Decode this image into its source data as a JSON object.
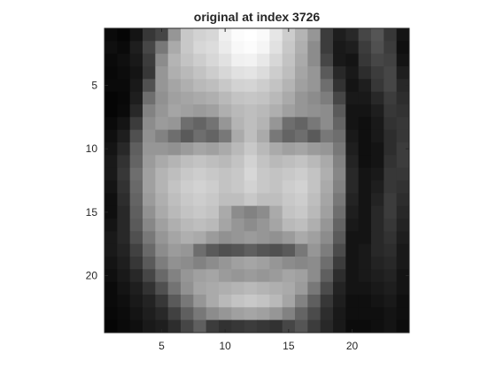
{
  "figure": {
    "title": "original at index 3726"
  },
  "chart_data": {
    "type": "heatmap",
    "title": "original at index 3726",
    "colormap": "gray",
    "xlim": [
      0.5,
      24.5
    ],
    "ylim": [
      0.5,
      24.5
    ],
    "y_reversed": true,
    "xticks": [
      5,
      10,
      15,
      20
    ],
    "yticks": [
      5,
      10,
      15,
      20
    ],
    "grid": false,
    "rows": 24,
    "cols": 24,
    "values": [
      [
        10,
        5,
        20,
        55,
        70,
        150,
        200,
        210,
        215,
        240,
        252,
        255,
        250,
        230,
        205,
        180,
        150,
        60,
        30,
        40,
        70,
        85,
        55,
        20
      ],
      [
        15,
        10,
        30,
        70,
        120,
        170,
        200,
        215,
        220,
        235,
        248,
        252,
        245,
        225,
        200,
        175,
        140,
        60,
        25,
        30,
        60,
        80,
        60,
        15
      ],
      [
        10,
        15,
        25,
        60,
        140,
        180,
        195,
        205,
        215,
        225,
        240,
        242,
        232,
        215,
        195,
        170,
        140,
        70,
        25,
        20,
        55,
        70,
        65,
        20
      ],
      [
        8,
        12,
        20,
        55,
        150,
        175,
        185,
        195,
        205,
        215,
        225,
        228,
        220,
        205,
        190,
        165,
        150,
        90,
        40,
        25,
        45,
        60,
        70,
        30
      ],
      [
        10,
        10,
        25,
        80,
        150,
        165,
        175,
        185,
        190,
        200,
        210,
        212,
        205,
        195,
        180,
        160,
        150,
        110,
        50,
        20,
        30,
        55,
        70,
        40
      ],
      [
        5,
        8,
        30,
        110,
        145,
        160,
        165,
        170,
        175,
        185,
        195,
        198,
        195,
        185,
        170,
        150,
        140,
        125,
        70,
        25,
        25,
        40,
        60,
        45
      ],
      [
        5,
        10,
        40,
        130,
        150,
        165,
        160,
        155,
        160,
        175,
        185,
        190,
        185,
        175,
        160,
        150,
        145,
        140,
        90,
        20,
        20,
        30,
        55,
        50
      ],
      [
        10,
        20,
        60,
        140,
        155,
        150,
        110,
        100,
        115,
        150,
        180,
        190,
        180,
        150,
        110,
        100,
        120,
        140,
        100,
        20,
        15,
        25,
        50,
        55
      ],
      [
        15,
        30,
        80,
        145,
        130,
        110,
        90,
        110,
        100,
        120,
        170,
        190,
        170,
        120,
        100,
        110,
        90,
        120,
        110,
        25,
        15,
        25,
        45,
        55
      ],
      [
        20,
        40,
        95,
        150,
        150,
        145,
        155,
        165,
        160,
        170,
        185,
        200,
        185,
        170,
        160,
        165,
        155,
        150,
        120,
        30,
        15,
        20,
        45,
        60
      ],
      [
        25,
        50,
        100,
        155,
        170,
        180,
        190,
        195,
        190,
        185,
        195,
        210,
        195,
        185,
        190,
        195,
        185,
        170,
        130,
        35,
        15,
        20,
        50,
        60
      ],
      [
        25,
        55,
        110,
        160,
        180,
        190,
        200,
        205,
        200,
        195,
        200,
        215,
        200,
        195,
        200,
        205,
        195,
        175,
        135,
        40,
        20,
        25,
        55,
        55
      ],
      [
        20,
        50,
        105,
        160,
        180,
        195,
        205,
        210,
        205,
        195,
        200,
        210,
        200,
        195,
        205,
        210,
        195,
        170,
        130,
        40,
        20,
        30,
        55,
        50
      ],
      [
        15,
        45,
        100,
        155,
        175,
        190,
        200,
        205,
        200,
        190,
        190,
        200,
        190,
        190,
        200,
        205,
        190,
        165,
        120,
        35,
        20,
        35,
        60,
        45
      ],
      [
        15,
        40,
        95,
        145,
        170,
        185,
        195,
        200,
        195,
        170,
        140,
        130,
        140,
        170,
        195,
        200,
        185,
        160,
        110,
        30,
        20,
        40,
        60,
        40
      ],
      [
        20,
        40,
        90,
        135,
        160,
        175,
        185,
        190,
        185,
        165,
        150,
        140,
        150,
        165,
        185,
        190,
        175,
        150,
        100,
        25,
        20,
        40,
        55,
        35
      ],
      [
        25,
        40,
        80,
        120,
        150,
        165,
        175,
        170,
        155,
        145,
        150,
        155,
        150,
        145,
        155,
        170,
        160,
        140,
        90,
        20,
        20,
        40,
        50,
        30
      ],
      [
        25,
        35,
        65,
        105,
        140,
        155,
        150,
        110,
        90,
        80,
        85,
        95,
        85,
        80,
        90,
        120,
        150,
        125,
        75,
        20,
        25,
        40,
        45,
        25
      ],
      [
        20,
        30,
        55,
        90,
        125,
        145,
        140,
        130,
        140,
        150,
        160,
        165,
        160,
        150,
        140,
        135,
        140,
        110,
        60,
        20,
        25,
        35,
        40,
        25
      ],
      [
        15,
        25,
        40,
        70,
        105,
        130,
        150,
        160,
        165,
        155,
        150,
        155,
        150,
        155,
        165,
        160,
        140,
        95,
        45,
        20,
        25,
        30,
        35,
        20
      ],
      [
        10,
        20,
        30,
        50,
        80,
        115,
        145,
        165,
        170,
        175,
        180,
        185,
        180,
        175,
        170,
        155,
        120,
        75,
        35,
        20,
        20,
        25,
        30,
        20
      ],
      [
        10,
        15,
        25,
        35,
        55,
        90,
        120,
        150,
        170,
        185,
        195,
        200,
        195,
        185,
        165,
        130,
        95,
        55,
        30,
        15,
        15,
        20,
        25,
        15
      ],
      [
        8,
        12,
        20,
        30,
        40,
        65,
        95,
        120,
        140,
        150,
        160,
        165,
        160,
        150,
        130,
        100,
        75,
        45,
        25,
        15,
        15,
        15,
        20,
        15
      ],
      [
        5,
        10,
        15,
        25,
        30,
        45,
        70,
        95,
        60,
        50,
        55,
        60,
        55,
        50,
        70,
        85,
        60,
        40,
        25,
        12,
        12,
        15,
        20,
        12
      ]
    ]
  }
}
